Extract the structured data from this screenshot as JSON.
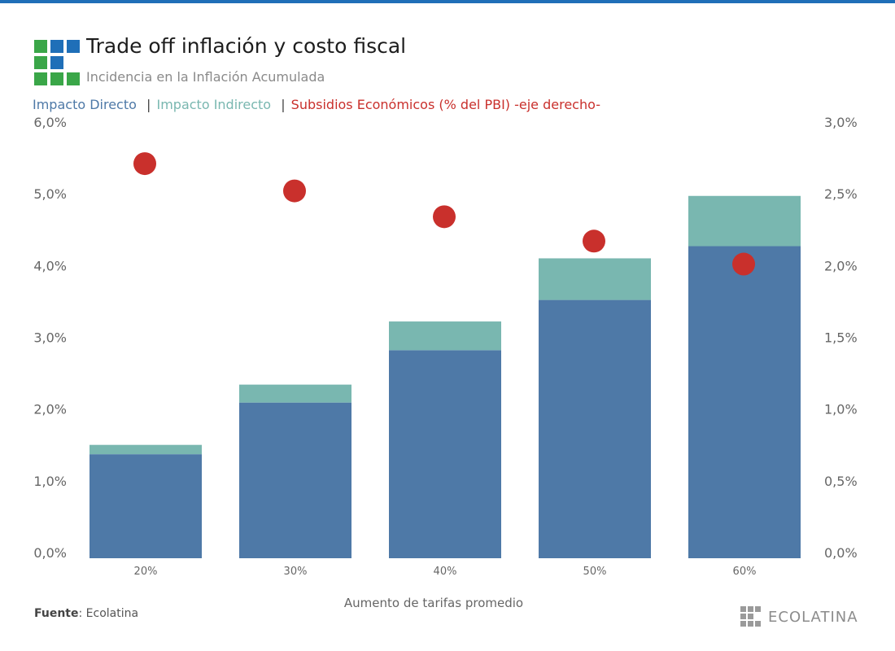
{
  "header": {
    "title": "Trade off inflación y costo fiscal",
    "subtitle": "Incidencia en la Inflación Acumulada"
  },
  "legend": {
    "items": [
      {
        "label": "Impacto Directo",
        "color": "#4e79a7"
      },
      {
        "label": "Impacto Indirecto",
        "color": "#79b7b0"
      },
      {
        "label": "Subsidios Económicos (% del PBI) -eje derecho-",
        "color": "#c9302c"
      }
    ],
    "separator": "|"
  },
  "footer": {
    "source_label": "Fuente",
    "source_value": ": Ecolatina",
    "brand": "ECOLATINA"
  },
  "colors": {
    "accent_bar": "#1f6fb8",
    "logo_blue": "#1f6fb8",
    "logo_green": "#3aa648",
    "brand_gray": "#9a9a9a"
  },
  "chart_data": {
    "type": "bar",
    "stacked": true,
    "categories": [
      "20%",
      "30%",
      "40%",
      "50%",
      "60%"
    ],
    "xlabel": "Aumento de tarifas promedio",
    "ylabel": "",
    "ylim": [
      0,
      6.0
    ],
    "y_ticks": [
      "0,0%",
      "1,0%",
      "2,0%",
      "3,0%",
      "4,0%",
      "5,0%",
      "6,0%"
    ],
    "y2lim": [
      0,
      3.0
    ],
    "y2_ticks": [
      "0,0%",
      "0,5%",
      "1,0%",
      "1,5%",
      "2,0%",
      "2,5%",
      "3,0%"
    ],
    "grid": false,
    "series": [
      {
        "name": "Impacto Directo",
        "type": "bar",
        "axis": "left",
        "color": "#4e79a7",
        "values": [
          1.45,
          2.17,
          2.9,
          3.6,
          4.35
        ]
      },
      {
        "name": "Impacto Indirecto",
        "type": "bar",
        "axis": "left",
        "color": "#79b7b0",
        "values": [
          0.13,
          0.25,
          0.4,
          0.58,
          0.7
        ]
      },
      {
        "name": "Subsidios Económicos (% del PBI) -eje derecho-",
        "type": "scatter",
        "axis": "right",
        "color": "#c9302c",
        "values": [
          2.75,
          2.56,
          2.38,
          2.21,
          2.05
        ]
      }
    ]
  }
}
